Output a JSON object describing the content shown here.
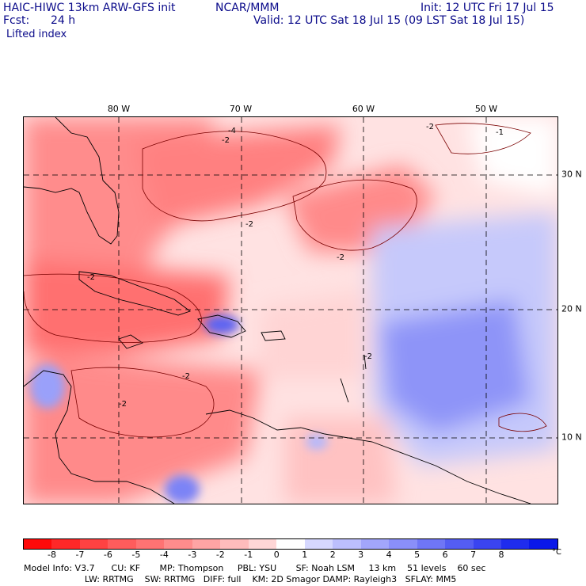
{
  "header": {
    "model": "HAIC-HIWC 13km ARW-GFS init",
    "org": "NCAR/MMM",
    "init": "Init: 12 UTC Fri 17 Jul 15",
    "fcst_label": "Fcst:",
    "fcst_value": "24 h",
    "valid": "Valid: 12 UTC Sat 18 Jul 15 (09 LST Sat 18 Jul 15)",
    "field": "Lifted index"
  },
  "map": {
    "lon_labels": [
      "80 W",
      "70 W",
      "60 W",
      "50 W"
    ],
    "lat_labels": [
      "30 N",
      "20 N",
      "10 N"
    ],
    "contour_labels": [
      "-2",
      "-4",
      "-2",
      "-1",
      "-2",
      "-2",
      "-2",
      "-2",
      "-2",
      "-2"
    ]
  },
  "colorbar": {
    "ticks": [
      "-8",
      "-7",
      "-6",
      "-5",
      "-4",
      "-3",
      "-2",
      "-1",
      "0",
      "1",
      "2",
      "3",
      "4",
      "5",
      "6",
      "7",
      "8"
    ],
    "unit": "°C",
    "colors": [
      "#ff0a0a",
      "#ff2828",
      "#ff4242",
      "#ff5c5c",
      "#ff7373",
      "#ff8c8c",
      "#ffa4a4",
      "#ffbcbc",
      "#ffd6d6",
      "#ffffff",
      "#d6d8ff",
      "#bcbffd",
      "#a2a6fb",
      "#8a8ff9",
      "#6f76f6",
      "#545df3",
      "#3a44f0",
      "#1f2cee",
      "#0a18ea"
    ]
  },
  "model_info": {
    "line1": "Model Info: V3.7      CU: KF       MP: Thompson     PBL: YSU       SF: Noah LSM     13 km    51 levels    60 sec",
    "line2": "                      LW: RRTMG    SW: RRTMG   DIFF: full    KM: 2D Smagor DAMP: Rayleigh3   SFLAY: MM5"
  }
}
